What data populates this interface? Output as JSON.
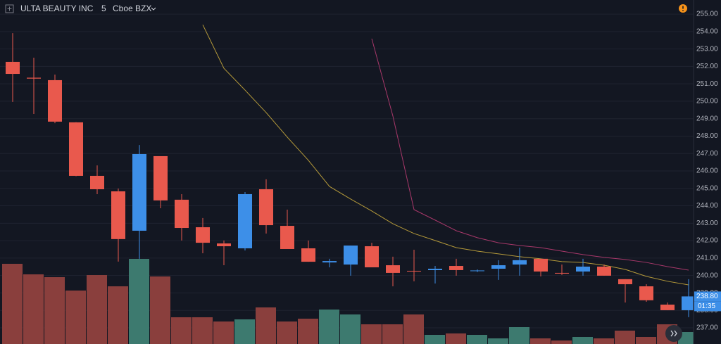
{
  "chart_data": {
    "type": "candlestick",
    "title": "ULTA BEAUTY INC",
    "interval": "5",
    "exchange": "Cboe BZX",
    "open": [
      252.26,
      251.35,
      251.21,
      248.79,
      245.72,
      244.83,
      242.57,
      246.85,
      244.35,
      242.77,
      241.84,
      241.56,
      244.95,
      242.85,
      241.56,
      240.75,
      240.63,
      241.68,
      240.59,
      240.27,
      240.31,
      240.55,
      240.27,
      240.39,
      240.63,
      240.96,
      240.15,
      240.23,
      240.51,
      239.79,
      239.38,
      238.33,
      238.01
    ],
    "high": [
      253.91,
      252.5,
      251.53,
      248.8,
      246.32,
      244.99,
      247.49,
      246.85,
      244.67,
      243.3,
      242.01,
      244.79,
      245.52,
      243.78,
      242.01,
      240.96,
      241.72,
      241.88,
      241.08,
      241.48,
      240.55,
      240.96,
      240.35,
      240.88,
      241.6,
      240.96,
      240.63,
      240.96,
      240.63,
      239.79,
      239.5,
      238.45,
      239.79
    ],
    "low": [
      249.96,
      249.27,
      248.74,
      245.7,
      244.67,
      240.8,
      240.96,
      243.86,
      242.01,
      241.28,
      240.59,
      241.44,
      242.41,
      241.52,
      240.79,
      240.47,
      239.99,
      240.47,
      239.38,
      239.67,
      239.54,
      239.99,
      240.2,
      239.75,
      239.99,
      239.95,
      240.03,
      239.99,
      239.99,
      238.45,
      238.49,
      238.01,
      237.61
    ],
    "close": [
      251.57,
      251.3,
      248.83,
      245.72,
      244.95,
      242.09,
      246.97,
      244.31,
      242.73,
      241.88,
      241.68,
      244.67,
      242.89,
      241.52,
      240.79,
      240.83,
      241.72,
      240.47,
      240.15,
      240.23,
      240.39,
      240.31,
      240.29,
      240.59,
      240.88,
      240.23,
      240.11,
      240.51,
      239.99,
      239.5,
      238.58,
      238.01,
      238.8
    ],
    "volume": [
      114,
      99,
      95,
      76,
      98,
      82,
      121,
      96,
      38,
      38,
      32,
      35,
      52,
      32,
      36,
      49,
      42,
      28,
      28,
      42,
      13,
      15,
      13,
      8,
      24,
      8,
      5,
      10,
      8,
      19,
      10,
      28,
      17
    ],
    "up_color": "#3d8fe8",
    "down_color": "#e9594d",
    "volume_up_color": "#3d7a6f",
    "volume_down_color": "#8a3f3d",
    "moving_averages": [
      {
        "color": "#b59a3a",
        "values": [
          null,
          null,
          null,
          null,
          null,
          null,
          null,
          null,
          null,
          254.39,
          251.89,
          250.64,
          249.35,
          247.94,
          246.61,
          245.11,
          244.39,
          243.7,
          242.97,
          242.41,
          242.01,
          241.6,
          241.4,
          241.24,
          241.08,
          240.96,
          240.8,
          240.75,
          240.59,
          240.35,
          239.95,
          239.67,
          239.46
        ]
      },
      {
        "color": "#a8386a",
        "values": [
          null,
          null,
          null,
          null,
          null,
          null,
          null,
          null,
          null,
          null,
          null,
          null,
          null,
          null,
          null,
          null,
          null,
          253.59,
          249.15,
          243.78,
          243.18,
          242.57,
          242.17,
          241.88,
          241.72,
          241.6,
          241.4,
          241.2,
          241.04,
          240.92,
          240.75,
          240.51,
          240.31
        ]
      }
    ],
    "ylim": [
      236.07,
      255.81
    ],
    "yticks": [
      {
        "value": 237,
        "label": "237.00"
      },
      {
        "value": 238,
        "label": "238.00"
      },
      {
        "value": 239,
        "label": "239.00"
      },
      {
        "value": 240,
        "label": "240.00"
      },
      {
        "value": 241,
        "label": "241.00"
      },
      {
        "value": 242,
        "label": "242.00"
      },
      {
        "value": 243,
        "label": "243.00"
      },
      {
        "value": 244,
        "label": "244.00"
      },
      {
        "value": 245,
        "label": "245.00"
      },
      {
        "value": 246,
        "label": "246.00"
      },
      {
        "value": 247,
        "label": "247.00"
      },
      {
        "value": 248,
        "label": "248.00"
      },
      {
        "value": 249,
        "label": "249.00"
      },
      {
        "value": 250,
        "label": "250.00"
      },
      {
        "value": 251,
        "label": "251.00"
      },
      {
        "value": 252,
        "label": "252.00"
      },
      {
        "value": 253,
        "label": "253.00"
      },
      {
        "value": 254,
        "label": "254.00"
      },
      {
        "value": 255,
        "label": "255.00"
      }
    ],
    "grid": true,
    "last_price": {
      "value": 238.8,
      "label": "238.80"
    },
    "countdown": "01:35"
  }
}
